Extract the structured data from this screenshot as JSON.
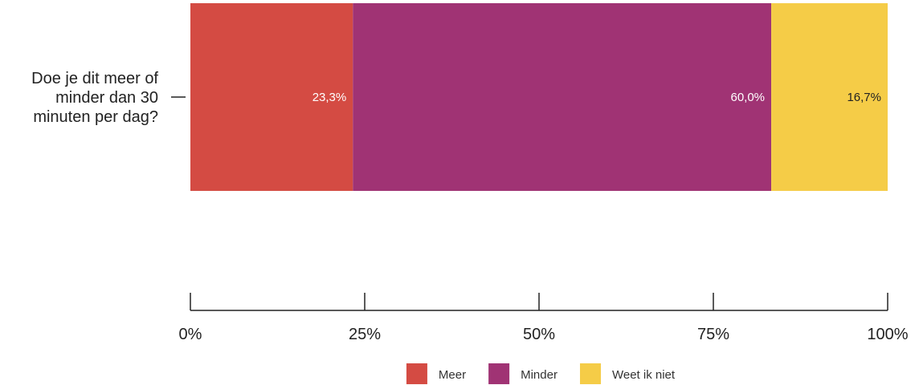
{
  "chart_data": {
    "type": "bar",
    "orientation": "horizontal",
    "stacked": true,
    "categories": [
      "Doe je dit meer of minder dan 30 minuten per dag?"
    ],
    "category_lines": [
      [
        "Doe je dit meer of",
        "minder dan 30",
        "minuten per dag?"
      ]
    ],
    "series": [
      {
        "name": "Meer",
        "values": [
          23.3
        ],
        "label": "23,3%",
        "color": "#d44b43",
        "label_color": "#ffffff"
      },
      {
        "name": "Minder",
        "values": [
          60.0
        ],
        "label": "60,0%",
        "color": "#a03374",
        "label_color": "#ffffff"
      },
      {
        "name": "Weet ik niet",
        "values": [
          16.7
        ],
        "label": "16,7%",
        "color": "#f5cc47",
        "label_color": "#222222"
      }
    ],
    "xlim": [
      0,
      100
    ],
    "x_ticks": [
      0,
      25,
      50,
      75,
      100
    ],
    "x_tick_labels": [
      "0%",
      "25%",
      "50%",
      "75%",
      "100%"
    ],
    "grid": false,
    "legend_position": "bottom-center"
  }
}
